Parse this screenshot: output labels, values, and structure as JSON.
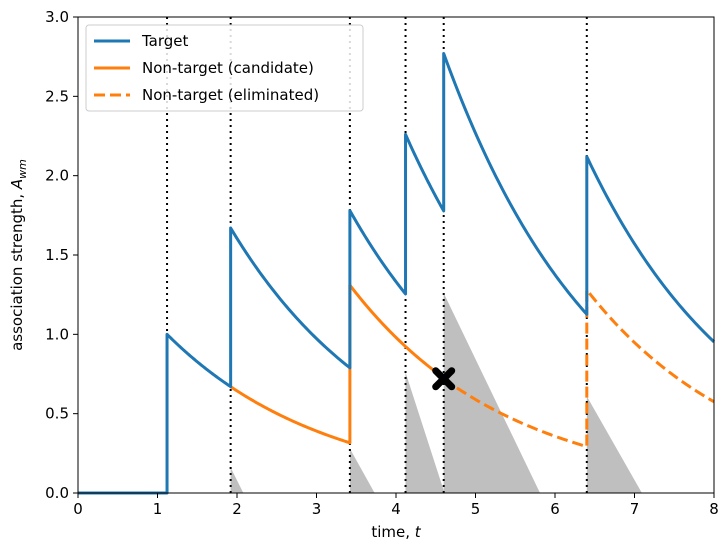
{
  "chart_data": {
    "type": "line",
    "xlabel": "time,",
    "xlabel_var": "t",
    "ylabel": "association strength,",
    "ylabel_var": "A",
    "ylabel_sub": "wm",
    "xlim": [
      0,
      8
    ],
    "ylim": [
      0,
      3
    ],
    "xticks": [
      "0",
      "1",
      "2",
      "3",
      "4",
      "5",
      "6",
      "7",
      "8"
    ],
    "yticks": [
      "0.0",
      "0.5",
      "1.0",
      "1.5",
      "2.0",
      "2.5",
      "3.0"
    ],
    "grid": false,
    "legend_position": "top-left",
    "decay_rate": 0.5,
    "event_times": [
      1.12,
      1.92,
      3.42,
      4.12,
      4.6,
      6.4
    ],
    "colors": {
      "target": "#1f77b4",
      "nontarget": "#ff7f0e",
      "shade": "#bfbfbf",
      "marker": "#000000"
    },
    "series": [
      {
        "name": "Target",
        "style": "solid",
        "segments": [
          {
            "t0": 0,
            "t1": 1.12,
            "a0": 0,
            "decay": false
          },
          {
            "t0": 1.12,
            "t1": 1.92,
            "a0": 1.0
          },
          {
            "t0": 1.92,
            "t1": 3.42,
            "a0": 1.67
          },
          {
            "t0": 3.42,
            "t1": 4.12,
            "a0": 1.78
          },
          {
            "t0": 4.12,
            "t1": 4.6,
            "a0": 2.26
          },
          {
            "t0": 4.6,
            "t1": 6.4,
            "a0": 2.77
          },
          {
            "t0": 6.4,
            "t1": 8.0,
            "a0": 2.12
          }
        ]
      },
      {
        "name": "Non-target (candidate)",
        "style": "solid",
        "segments": [
          {
            "t0": 1.92,
            "t1": 3.42,
            "a0": 0.67
          },
          {
            "t0": 3.42,
            "t1": 4.6,
            "a0": 1.31
          }
        ]
      },
      {
        "name": "Non-target (eliminated)",
        "style": "dashed",
        "segments": [
          {
            "t0": 4.6,
            "t1": 6.4,
            "a0": 0.72
          },
          {
            "t0": 6.4,
            "t1": 8.0,
            "a0": 1.28
          }
        ]
      }
    ],
    "shaded_regions": [
      {
        "t0": 1.92,
        "a0": 0.16,
        "slope": 1.0
      },
      {
        "t0": 3.42,
        "a0": 0.28,
        "slope": 0.9
      },
      {
        "t0": 4.12,
        "a0": 0.76,
        "slope": 1.55
      },
      {
        "t0": 4.6,
        "a0": 1.26,
        "slope": 1.04
      },
      {
        "t0": 6.4,
        "a0": 0.61,
        "slope": 0.88
      }
    ],
    "elimination_marker": {
      "x": 4.6,
      "y": 0.72
    }
  }
}
